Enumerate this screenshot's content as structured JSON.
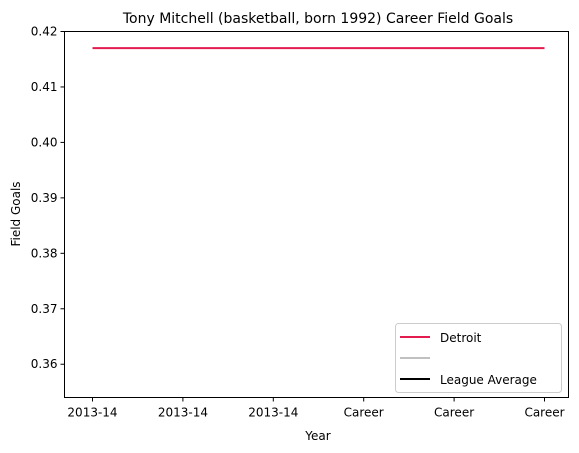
{
  "chart_data": {
    "type": "line",
    "title": "Tony Mitchell (basketball, born 1992) Career Field Goals",
    "xlabel": "Year",
    "ylabel": "Field Goals",
    "categories": [
      "2013-14",
      "2013-14",
      "2013-14",
      "Career",
      "Career",
      "Career"
    ],
    "ylim": [
      0.354,
      0.42
    ],
    "yticks": [
      0.36,
      0.37,
      0.38,
      0.39,
      0.4,
      0.41,
      0.42
    ],
    "grid": false,
    "legend_position": "lower-right",
    "series": [
      {
        "name": "Detroit",
        "color": "#e31b4f",
        "values": [
          0.417,
          0.417,
          0.417,
          0.417,
          0.417,
          0.417
        ]
      }
    ],
    "legend": [
      {
        "label": "Detroit",
        "color": "#e31b4f"
      },
      {
        "label": "",
        "color": "#c0c0c0"
      },
      {
        "label": "League Average",
        "color": "#000000"
      }
    ]
  }
}
